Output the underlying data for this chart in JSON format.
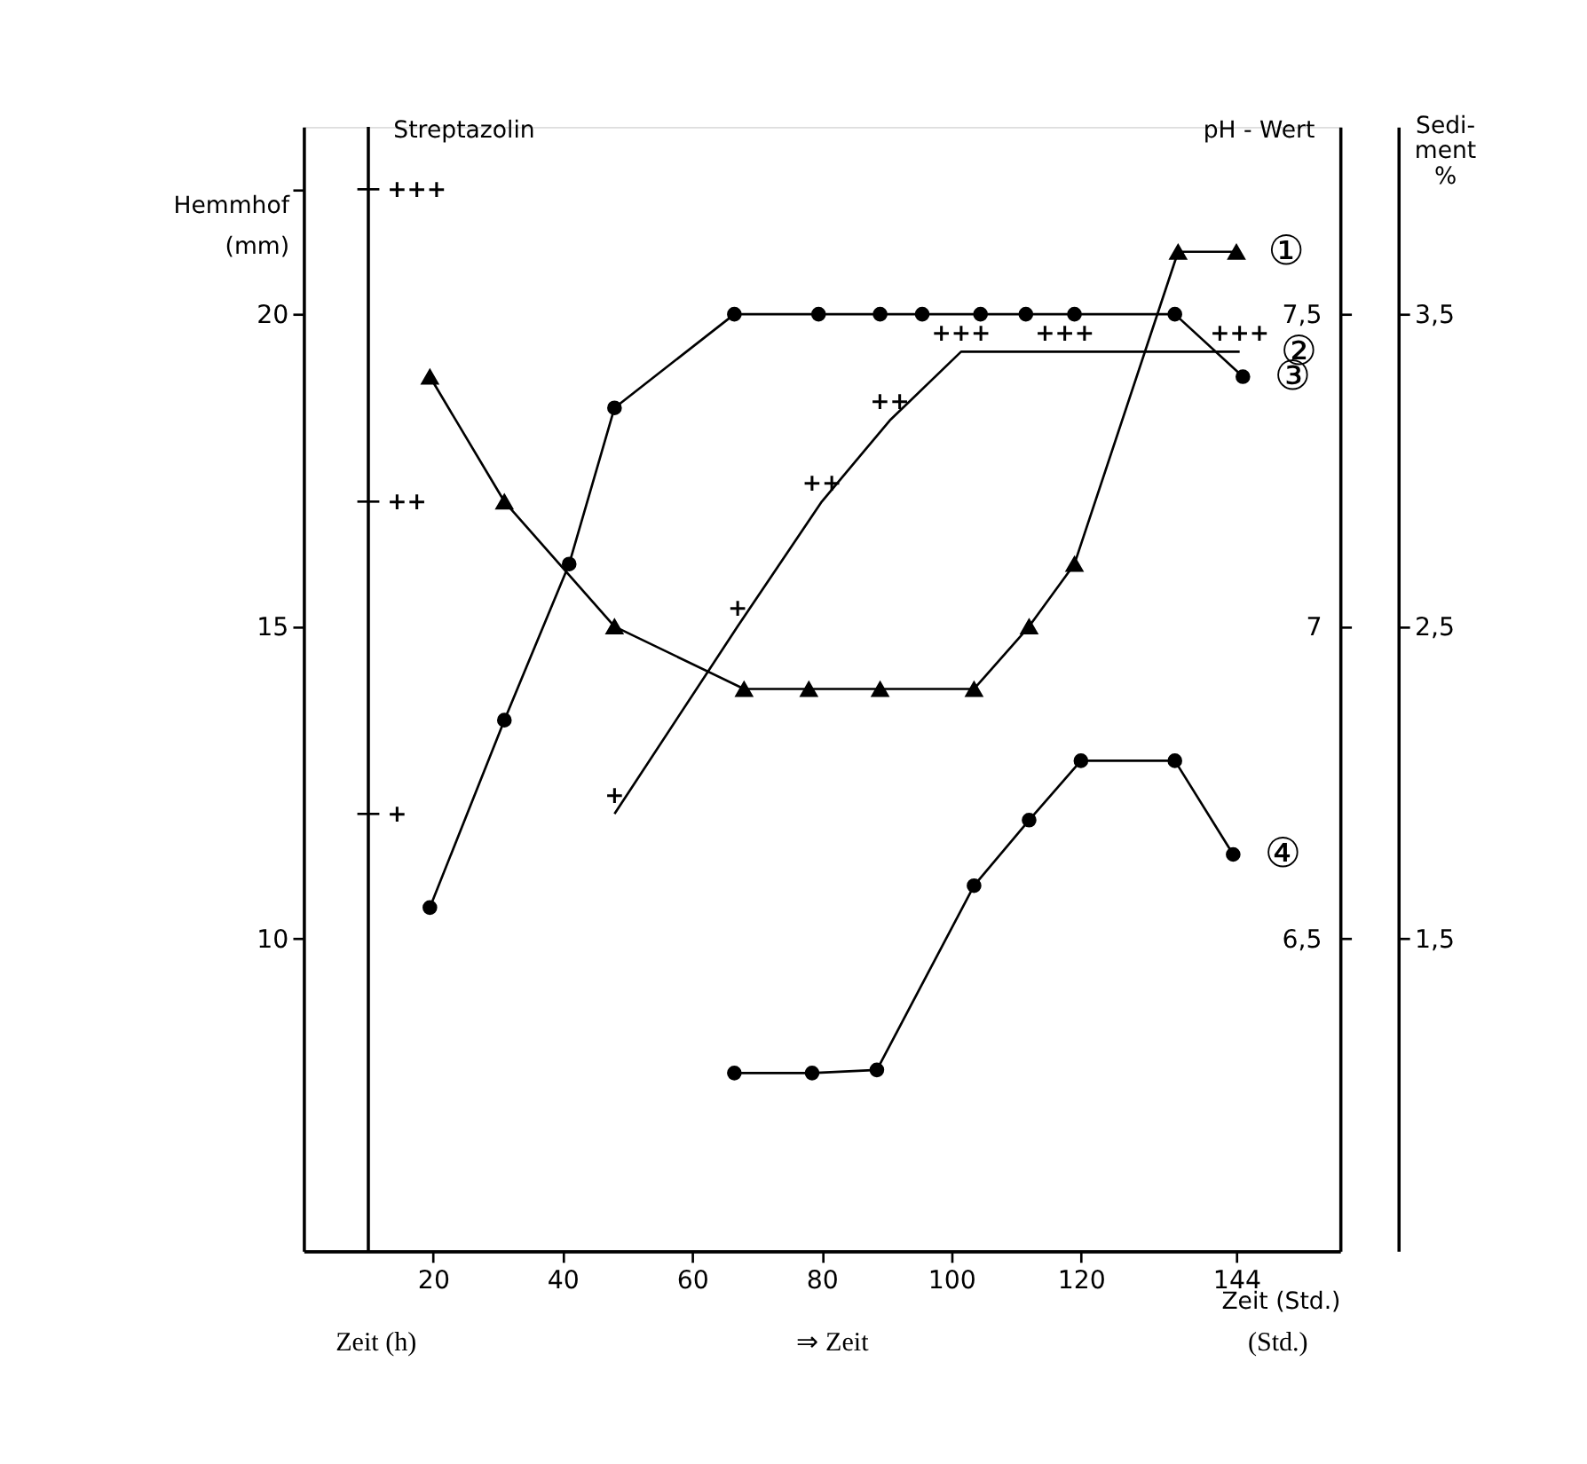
{
  "chart_data": {
    "type": "line",
    "xlabel": "Zeit (Std.)",
    "ylabel": "Hemmhof (mm)",
    "y2label": "pH - Wert",
    "y3label": "Sedi- ment %",
    "xlim": [
      0,
      160
    ],
    "xticks": [
      20,
      40,
      60,
      80,
      100,
      120,
      144
    ],
    "ylim": [
      5,
      23
    ],
    "yticks": [
      10,
      15,
      20,
      {
        "value": 22,
        "label": null
      }
    ],
    "y2lim": [
      6.0,
      7.8
    ],
    "y2ticks": [
      {
        "value": 6.5,
        "label": "6,5"
      },
      7,
      {
        "value": 7.5,
        "label": "7,5"
      }
    ],
    "y3lim": [
      0.5,
      4.1
    ],
    "y3ticks": [
      {
        "value": 1.5,
        "label": "1,5"
      },
      {
        "value": 2.5,
        "label": "2,5"
      },
      {
        "value": 3.5,
        "label": "3,5"
      }
    ],
    "grid": false,
    "line_style": "solid",
    "ref_lines": [
      {
        "axis": "x",
        "value": 10,
        "label": "Streptazolin"
      }
    ],
    "annotations": [
      "Zeit (h)",
      "⇒ Zeit",
      "(Std.)",
      "+++",
      "++",
      "+"
    ],
    "series": [
      {
        "name": "①",
        "color": "#000000",
        "axis": "y2",
        "marker": "triangle",
        "x": [
          19.5,
          31,
          48,
          68,
          78,
          89,
          103.5,
          112,
          119,
          135,
          144
        ],
        "values": [
          7.4,
          7.2,
          7.0,
          6.9,
          6.9,
          6.9,
          6.9,
          7.0,
          7.1,
          7.6,
          7.6
        ]
      },
      {
        "name": "②",
        "color": "#000000",
        "marker": "none",
        "x": [
          48,
          67,
          80,
          90.5,
          101.5,
          117.5,
          144.5
        ],
        "values": [
          12,
          15,
          17,
          18.3,
          19.4,
          19.4,
          19.4
        ],
        "value_labels": [
          "+",
          "+",
          "++",
          "++",
          "+++",
          "+++",
          "+++"
        ]
      },
      {
        "name": "③",
        "color": "#000000",
        "marker": "circle",
        "x": [
          19.5,
          31,
          41,
          48,
          66.5,
          79.5,
          89,
          95.5,
          104.5,
          111.5,
          119,
          134.5,
          145
        ],
        "values": [
          10.5,
          13.5,
          16,
          18.5,
          20,
          20,
          20,
          20,
          20,
          20,
          20,
          20,
          19
        ]
      },
      {
        "name": "④",
        "color": "#000000",
        "axis": "y3",
        "marker": "circle",
        "x": [
          66.5,
          78.5,
          88.5,
          103.5,
          112,
          120,
          134.5,
          143.5
        ],
        "values": [
          1.07,
          1.07,
          1.08,
          1.67,
          1.88,
          2.07,
          2.07,
          1.77
        ]
      }
    ]
  }
}
